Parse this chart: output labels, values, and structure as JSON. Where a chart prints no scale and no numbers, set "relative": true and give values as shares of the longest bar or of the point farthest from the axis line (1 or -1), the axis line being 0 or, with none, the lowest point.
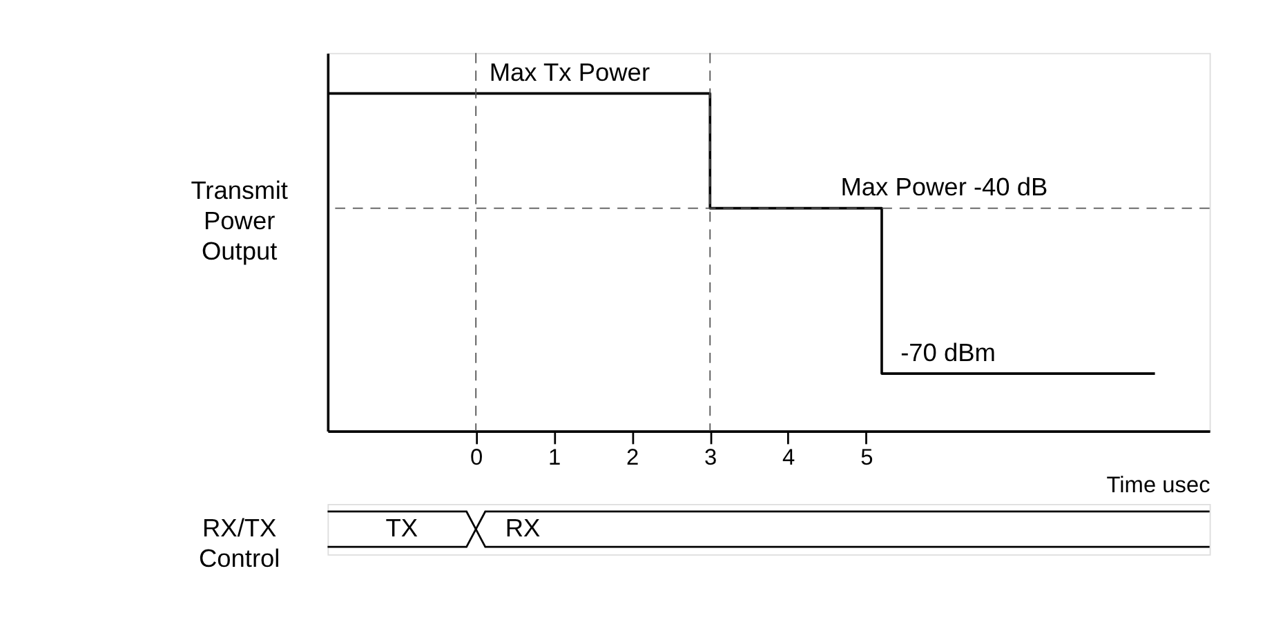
{
  "chart_data": [
    {
      "type": "step",
      "relative": true,
      "ylabel": "Transmit Power Output",
      "xlabel": "Time usec",
      "xlim": [
        -1.9,
        9.4
      ],
      "xticks": [
        0,
        1,
        2,
        3,
        4,
        5
      ],
      "tick_labels": "x",
      "grid": false,
      "line_style": "solid",
      "marker": "none",
      "series": [
        {
          "color": "#000000",
          "x": [
            -1.9,
            3,
            5.2,
            8.7
          ],
          "values": [
            1,
            0.66,
            0.17,
            0.17
          ]
        }
      ],
      "ref_lines": [
        {
          "axis": "x",
          "value": 0,
          "line_style": "dashed",
          "color": "#555555"
        },
        {
          "axis": "x",
          "value": 3,
          "line_style": "dashed",
          "color": "#555555"
        },
        {
          "axis": "y",
          "value": 0.66,
          "line_style": "dashed",
          "color": "#555555"
        }
      ],
      "annotations": [
        {
          "text": "Max Tx Power",
          "x": 1.2,
          "y": 1
        },
        {
          "text": "Max Power -40 dB",
          "x": 6.0,
          "y": 0.66
        },
        {
          "text": "-70 dBm",
          "x": 6.05,
          "y": 0.17
        }
      ]
    },
    {
      "type": "other",
      "ylabel": "RX/TX Control",
      "annotations": [
        "TX",
        "RX"
      ]
    }
  ]
}
